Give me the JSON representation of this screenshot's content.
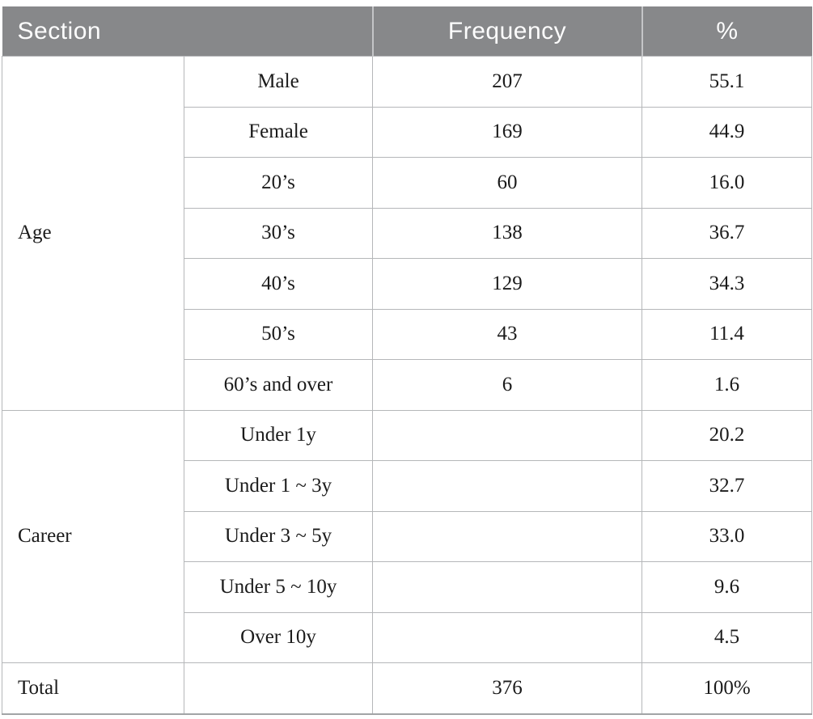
{
  "table": {
    "header": {
      "section": "Section",
      "frequency": "Frequency",
      "percent": "%"
    },
    "groups": [
      {
        "label": "Age",
        "rows": [
          {
            "category": "Male",
            "frequency": "207",
            "percent": "55.1"
          },
          {
            "category": "Female",
            "frequency": "169",
            "percent": "44.9"
          },
          {
            "category": "20’s",
            "frequency": "60",
            "percent": "16.0"
          },
          {
            "category": "30’s",
            "frequency": "138",
            "percent": "36.7"
          },
          {
            "category": "40’s",
            "frequency": "129",
            "percent": "34.3"
          },
          {
            "category": "50’s",
            "frequency": "43",
            "percent": "11.4"
          },
          {
            "category": "60’s and over",
            "frequency": "6",
            "percent": "1.6"
          }
        ]
      },
      {
        "label": "Career",
        "rows": [
          {
            "category": "Under 1y",
            "frequency": "",
            "percent": "20.2"
          },
          {
            "category": "Under 1 ~ 3y",
            "frequency": "",
            "percent": "32.7"
          },
          {
            "category": "Under 3 ~ 5y",
            "frequency": "",
            "percent": "33.0"
          },
          {
            "category": "Under 5 ~ 10y",
            "frequency": "",
            "percent": "9.6"
          },
          {
            "category": "Over 10y",
            "frequency": "",
            "percent": "4.5"
          }
        ]
      }
    ],
    "total": {
      "label": "Total",
      "frequency": "376",
      "percent": "100%"
    }
  },
  "colors": {
    "header_bg": "#87888a",
    "header_text": "#fdfdfd",
    "body_text": "#1b1b1b",
    "row_border": "#b5b7b9",
    "group_border": "#9d9fa1"
  }
}
